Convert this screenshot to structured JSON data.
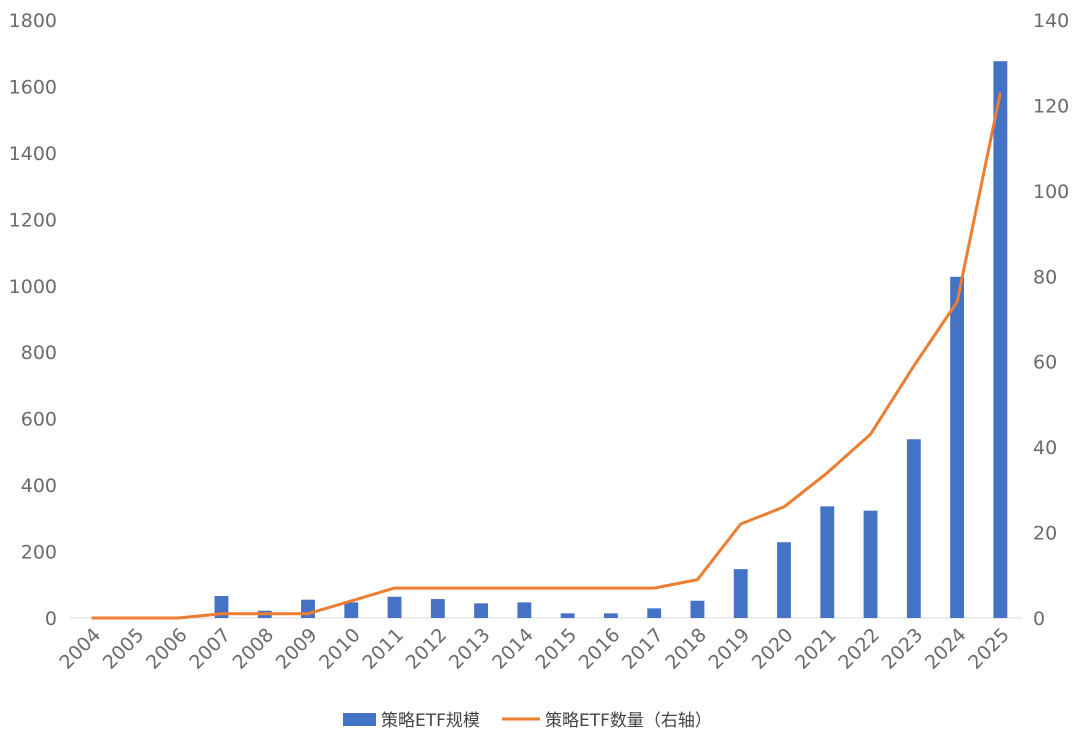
{
  "chart_data": {
    "type": "bar+line",
    "title": "",
    "categories": [
      "2004",
      "2005",
      "2006",
      "2007",
      "2008",
      "2009",
      "2010",
      "2011",
      "2012",
      "2013",
      "2014",
      "2015",
      "2016",
      "2017",
      "2018",
      "2019",
      "2020",
      "2021",
      "2022",
      "2023",
      "2024",
      "2025"
    ],
    "series": [
      {
        "name": "策略ETF规模",
        "type": "bar",
        "axis": "left",
        "color": "#4472C4",
        "values": [
          0,
          0,
          0,
          66,
          22,
          55,
          47,
          64,
          57,
          44,
          47,
          14,
          14,
          29,
          52,
          147,
          228,
          336,
          323,
          538,
          1027,
          1676
        ]
      },
      {
        "name": "策略ETF数量（右轴）",
        "type": "line",
        "axis": "right",
        "color": "#ED7D31",
        "values": [
          0,
          0,
          0,
          1,
          1,
          1,
          4,
          7,
          7,
          7,
          7,
          7,
          7,
          7,
          9,
          22,
          26,
          34,
          43,
          59,
          74,
          123
        ]
      }
    ],
    "y_left": {
      "min": 0,
      "max": 1800,
      "ticks": [
        "0",
        "200",
        "400",
        "600",
        "800",
        "1000",
        "1200",
        "1400",
        "1600",
        "1800"
      ]
    },
    "y_right": {
      "min": 0,
      "max": 140,
      "ticks": [
        "0",
        "20",
        "40",
        "60",
        "80",
        "100",
        "120",
        "140"
      ]
    },
    "grid": false,
    "legend_position": "bottom"
  }
}
